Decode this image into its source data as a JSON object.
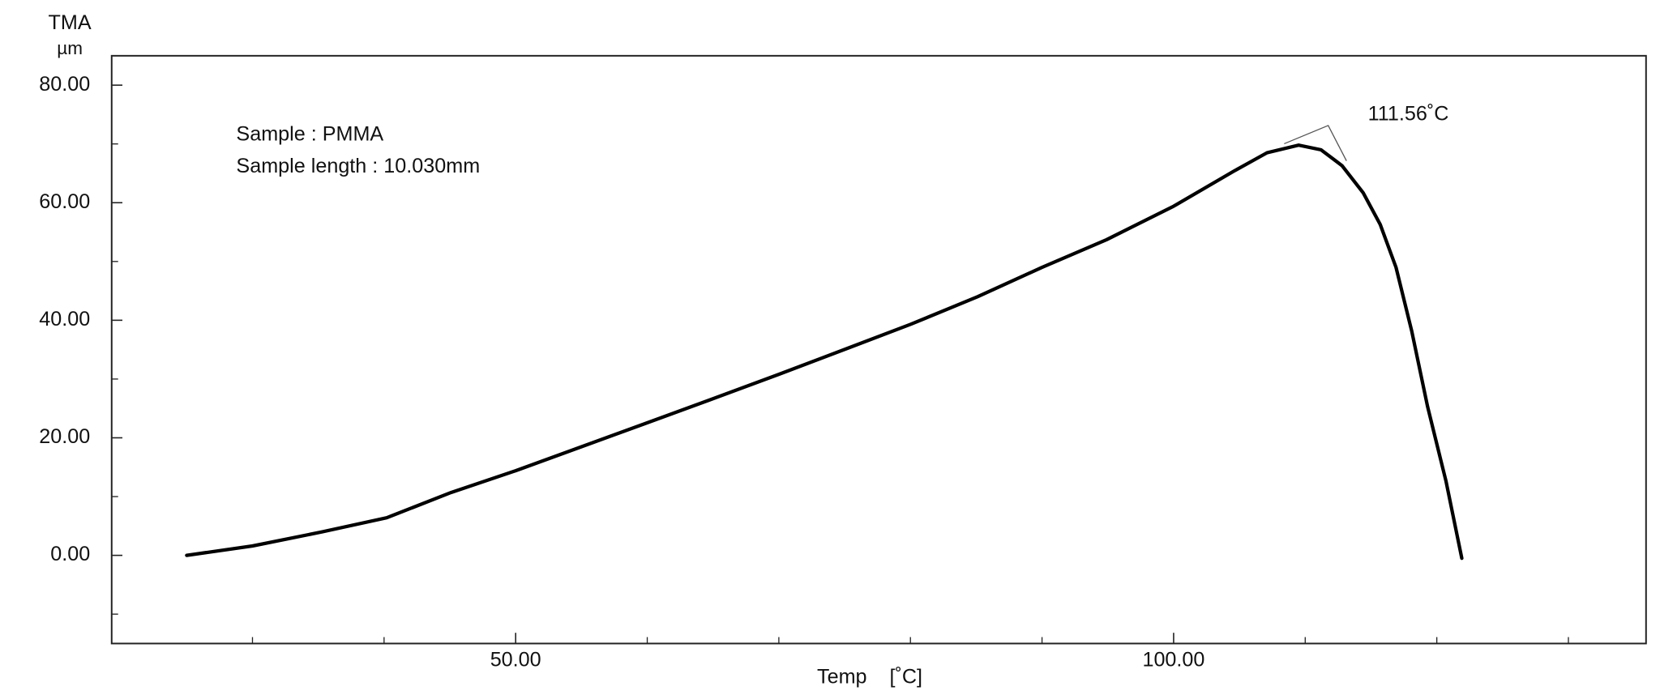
{
  "chart_data": {
    "type": "line",
    "y_label": "TMA",
    "y_unit": "µm",
    "x_label": "Temp    [˚C]",
    "annotations": [
      "Sample : PMMA",
      "Sample length : 10.030mm"
    ],
    "onset_label": "111.56˚C",
    "x": [
      25.0,
      30.0,
      35.3,
      40.2,
      45.1,
      50.0,
      54.9,
      59.8,
      64.7,
      70.0,
      75.3,
      80.0,
      85.1,
      90.0,
      94.9,
      100.0,
      104.6,
      107.1,
      109.5,
      111.2,
      112.8,
      114.4,
      115.7,
      116.9,
      118.1,
      119.3,
      120.7,
      121.9
    ],
    "values": [
      0,
      1.6,
      4,
      6.4,
      10.7,
      14.4,
      18.4,
      22.4,
      26.4,
      30.8,
      35.3,
      39.3,
      44,
      49,
      53.7,
      59.4,
      65.4,
      68.5,
      69.8,
      69,
      66.3,
      61.7,
      56.3,
      49,
      38.1,
      25.3,
      12.6,
      -0.5
    ],
    "color": "#000000",
    "xlim": [
      19.3,
      135.9
    ],
    "ylim": [
      -15,
      85
    ],
    "xticks": [
      {
        "value": 50,
        "label": "50.00"
      },
      {
        "value": 100,
        "label": "100.00"
      }
    ],
    "xminorticks": [
      30,
      40,
      60,
      70,
      80,
      90,
      110,
      120,
      130
    ],
    "yticks": [
      {
        "value": 0,
        "label": "0.00"
      },
      {
        "value": 20,
        "label": "20.00"
      },
      {
        "value": 40,
        "label": "40.00"
      },
      {
        "value": 60,
        "label": "60.00"
      },
      {
        "value": 80,
        "label": "80.00"
      }
    ],
    "yminorticks": [
      -10,
      10,
      30,
      50,
      70
    ]
  }
}
